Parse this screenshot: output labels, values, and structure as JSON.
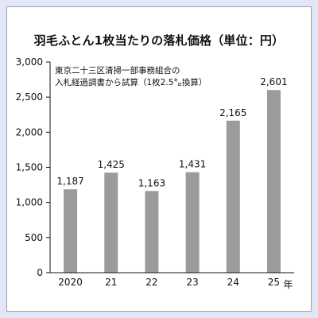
{
  "chart_data": {
    "type": "bar",
    "title": "羽毛ふとん1枚当たりの落札価格（単位：円）",
    "annotation": [
      "東京二十三区清掃一部事務組合の",
      "入札経過調書から試算（1枚2.5㌔換算）"
    ],
    "categories": [
      "2020",
      "21",
      "22",
      "23",
      "24",
      "25"
    ],
    "x_unit": "年",
    "values": [
      1187,
      1425,
      1163,
      1431,
      2165,
      2601
    ],
    "value_labels": [
      "1,187",
      "1,425",
      "1,163",
      "1,431",
      "2,165",
      "2,601"
    ],
    "ylim": [
      0,
      3000
    ],
    "y_ticks": [
      0,
      500,
      1000,
      1500,
      2000,
      2500,
      3000
    ],
    "y_tick_labels": [
      "0",
      "500",
      "1,000",
      "1,500",
      "2,000",
      "2,500",
      "3,000"
    ],
    "grid": false,
    "colors": {
      "bar": "#9b9b9b",
      "page_bg": "#e3e7f5",
      "panel_bg": "#ffffff"
    }
  }
}
